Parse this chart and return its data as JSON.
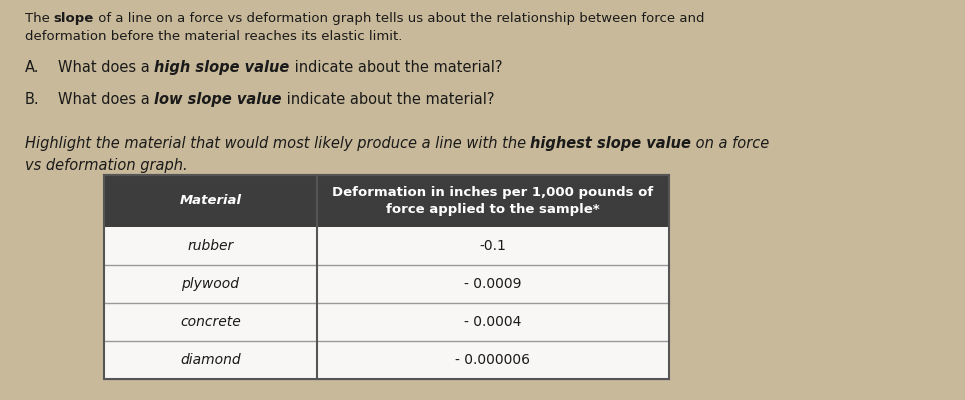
{
  "bg_color": "#c8b99a",
  "paper_color": "#f2eeea",
  "title_parts": [
    {
      "text": "The ",
      "bold": false,
      "italic": false
    },
    {
      "text": "slope",
      "bold": true,
      "italic": false
    },
    {
      "text": " of a line on a force vs deformation graph tells us about the relationship between force and",
      "bold": false,
      "italic": false
    }
  ],
  "title_line2": "deformation before the material reaches its elastic limit.",
  "label_a": "A.",
  "label_b": "B.",
  "qa_parts": [
    {
      "text": "What does a ",
      "bold": false,
      "italic": false
    },
    {
      "text": "high slope value",
      "bold": true,
      "italic": true
    },
    {
      "text": " indicate about the material?",
      "bold": false,
      "italic": false
    }
  ],
  "qb_parts": [
    {
      "text": "What does a ",
      "bold": false,
      "italic": false
    },
    {
      "text": "low slope value",
      "bold": true,
      "italic": true
    },
    {
      "text": " indicate about the material?",
      "bold": false,
      "italic": false
    }
  ],
  "highlight_line1_parts": [
    {
      "text": "Highlight the material that would most likely produce a line with the ",
      "bold": false,
      "italic": true
    },
    {
      "text": "highest slope value",
      "bold": true,
      "italic": true
    },
    {
      "text": " on a force",
      "bold": false,
      "italic": true
    }
  ],
  "highlight_line2": "vs deformation graph.",
  "highlight_line2_italic": true,
  "table_header_col1": "Material",
  "table_header_col2": "Deformation in inches per 1,000 pounds of\nforce applied to the sample*",
  "header_bg": "#3d3d3d",
  "header_fg": "#ffffff",
  "row_bg": "#f8f7f5",
  "row_alt_bg": "#f8f7f5",
  "row_border": "#999999",
  "table_rows": [
    [
      "rubber",
      "-0.1"
    ],
    [
      "plywood",
      "- 0.0009"
    ],
    [
      "concrete",
      "- 0.0004"
    ],
    [
      "diamond",
      "- 0.000006"
    ]
  ],
  "font_size_title": 9.5,
  "font_size_body": 10.5,
  "font_size_table": 9.5,
  "text_color": "#1a1a1a"
}
